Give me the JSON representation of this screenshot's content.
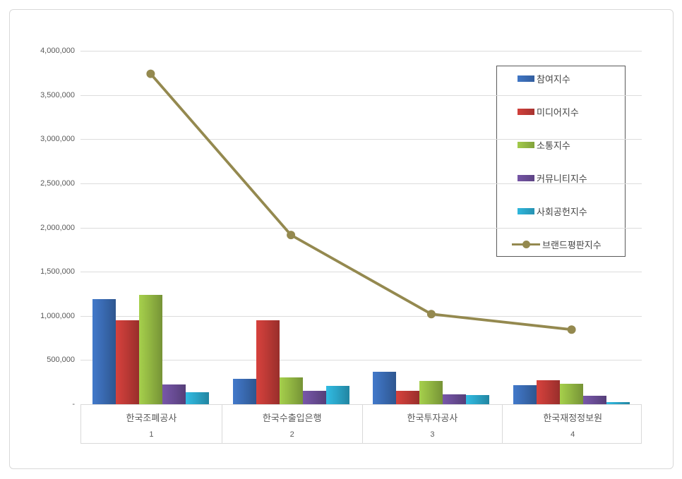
{
  "chart_data": {
    "type": "bar+line",
    "categories": [
      "한국조폐공사",
      "한국수출입은행",
      "한국투자공사",
      "한국재정정보원"
    ],
    "rank_labels": [
      "1",
      "2",
      "3",
      "4"
    ],
    "bar_series": [
      {
        "name": "참여지수",
        "color": "#3a6bb3",
        "values": [
          1190000,
          290000,
          365000,
          215000
        ]
      },
      {
        "name": "미디어지수",
        "color": "#be3a36",
        "values": [
          950000,
          950000,
          150000,
          275000
        ]
      },
      {
        "name": "소통지수",
        "color": "#93b843",
        "values": [
          1235000,
          300000,
          265000,
          230000
        ]
      },
      {
        "name": "커뮤니티지수",
        "color": "#6a4d96",
        "values": [
          220000,
          155000,
          115000,
          95000
        ]
      },
      {
        "name": "사회공헌지수",
        "color": "#2ba6c9",
        "values": [
          135000,
          205000,
          105000,
          25000
        ]
      }
    ],
    "line_series": {
      "name": "브랜드평판지수",
      "color": "#94894f",
      "values": [
        3740000,
        1915000,
        1020000,
        845000
      ]
    },
    "ylim": [
      0,
      4000000
    ],
    "y_tick_step": 500000,
    "y_tick_labels": [
      "-",
      "500,000",
      "1,000,000",
      "1,500,000",
      "2,000,000",
      "2,500,000",
      "3,000,000",
      "3,500,000",
      "4,000,000"
    ],
    "grid": true,
    "legend_position": "right-inside",
    "colors": {
      "gridline": "#dcdcdc",
      "axis_text": "#595959",
      "legend_border": "#595959",
      "frame_border": "#d8d8d8"
    }
  }
}
